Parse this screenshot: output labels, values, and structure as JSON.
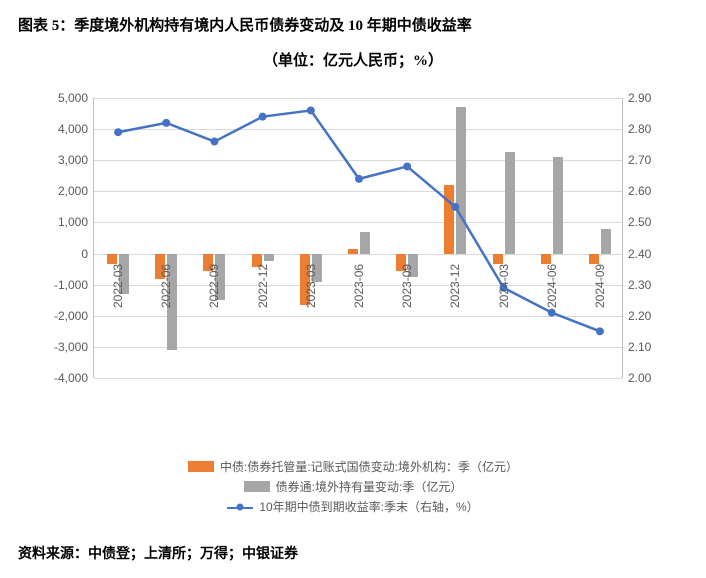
{
  "title": "图表 5：季度境外机构持有境内人民币债券变动及 10 年期中债收益率",
  "subtitle": "（单位：亿元人民币；%）",
  "source": "资料来源：中债登；上清所；万得；中银证券",
  "chart": {
    "type": "combo-bar-line",
    "left_axis": {
      "min": -4000,
      "max": 5000,
      "step": 1000,
      "format": "comma"
    },
    "right_axis": {
      "min": 2.0,
      "max": 2.9,
      "step": 0.1,
      "format": "2dp"
    },
    "categories": [
      "2022-03",
      "2022-06",
      "2022-09",
      "2022-12",
      "2023-03",
      "2023-06",
      "2023-09",
      "2023-12",
      "2024-03",
      "2024-06",
      "2024-09"
    ],
    "grid_color": "#d9d9d9",
    "axis_color": "#bfbfbf",
    "tick_font_size": 12,
    "background_color": "#ffffff",
    "series": {
      "bars1": {
        "label": "中债:债券托管量:记账式国债变动:境外机构：季（亿元）",
        "color": "#ed7d31",
        "values": [
          -330,
          -830,
          -550,
          -420,
          -1650,
          150,
          -550,
          2200,
          -350,
          -350,
          -350
        ]
      },
      "bars2": {
        "label": "债券通:境外持有量变动:季（亿元）",
        "color": "#a6a6a6",
        "values": [
          -1300,
          -3100,
          -1500,
          -250,
          -900,
          700,
          -750,
          4700,
          3250,
          3100,
          800
        ]
      },
      "line": {
        "label": "10年期中债到期收益率:季末（右轴，%）",
        "color": "#4472c4",
        "marker_size": 4,
        "values": [
          2.79,
          2.82,
          2.76,
          2.84,
          2.86,
          2.64,
          2.68,
          2.55,
          2.29,
          2.21,
          2.15
        ]
      }
    }
  }
}
